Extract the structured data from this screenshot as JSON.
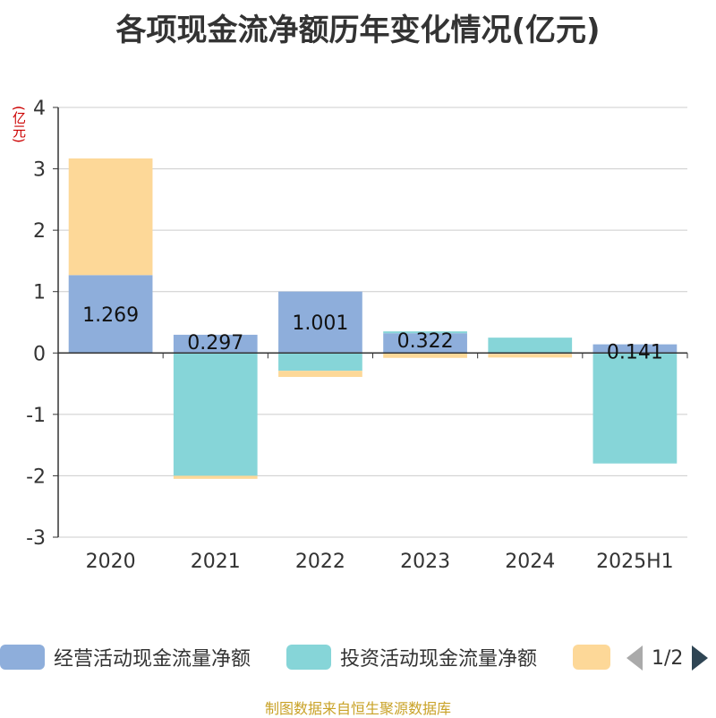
{
  "title": "各项现金流净额历年变化情况(亿元)",
  "unit_label": "(亿元)",
  "source": "制图数据来自恒生聚源数据库",
  "pager": "1/2",
  "colors": {
    "operating": "#8eaedb",
    "investing": "#86d5d8",
    "financing": "#fdd898",
    "axis": "#333333",
    "grid": "#cccccc",
    "unit": "#cc0000",
    "source": "#c9a227"
  },
  "chart_data": {
    "type": "bar",
    "stacked": true,
    "categories": [
      "2020",
      "2021",
      "2022",
      "2023",
      "2024",
      "2025H1"
    ],
    "ylim": [
      -3,
      4
    ],
    "yticks": [
      4,
      3,
      2,
      1,
      0,
      -1,
      -2,
      -3
    ],
    "grid": true,
    "legend_position": "bottom",
    "series": [
      {
        "name": "经营活动现金流量净额",
        "color": "#8eaedb",
        "values": [
          1.269,
          0.297,
          1.001,
          0.322,
          -0.014,
          0.141
        ],
        "labels": [
          "1.269",
          "0.297",
          "1.001",
          "0.322",
          "",
          "0.141"
        ]
      },
      {
        "name": "投资活动现金流量净额",
        "color": "#86d5d8",
        "values": [
          0.0,
          -2.0,
          -0.29,
          0.03,
          0.25,
          -1.8
        ]
      },
      {
        "name": "",
        "color": "#fdd898",
        "values": [
          1.9,
          -0.05,
          -0.1,
          -0.08,
          -0.06,
          0.0
        ]
      }
    ]
  }
}
